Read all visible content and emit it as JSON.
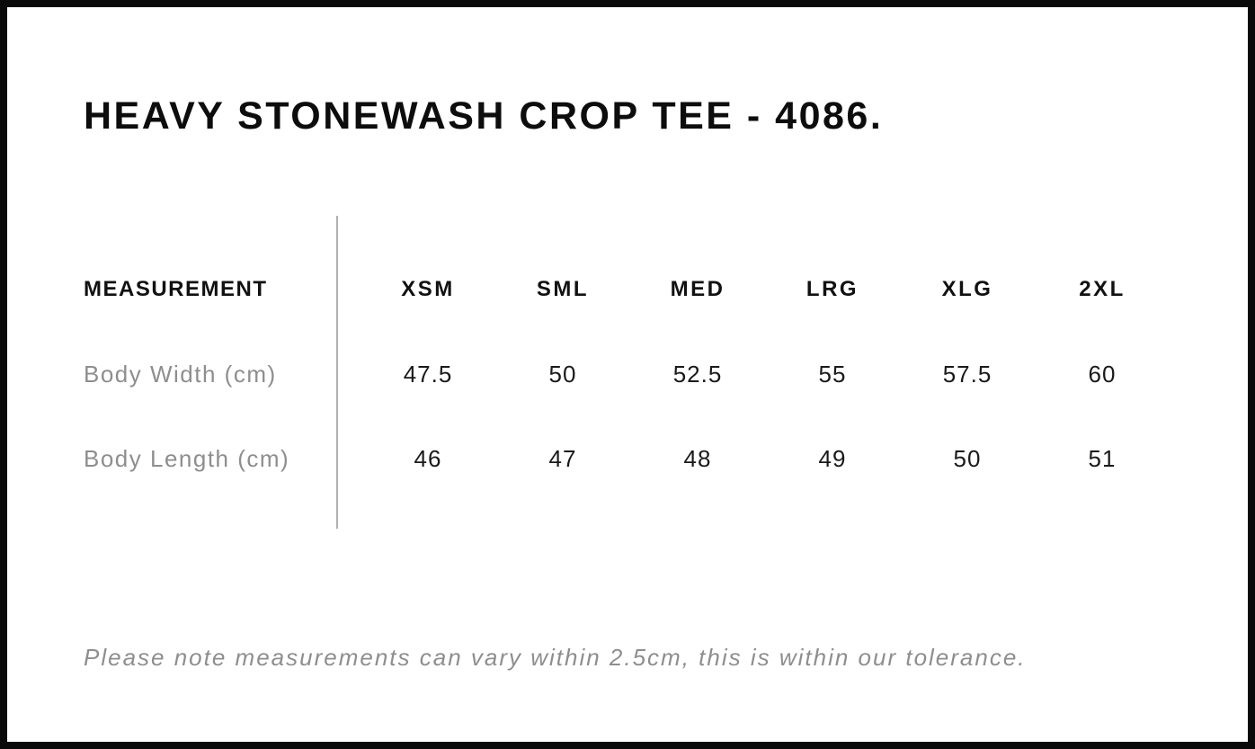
{
  "page": {
    "title": "HEAVY STONEWASH CROP TEE - 4086.",
    "note": "Please note measurements can vary within 2.5cm, this is within our tolerance."
  },
  "size_table": {
    "header_label": "MEASUREMENT",
    "columns": [
      "XSM",
      "SML",
      "MED",
      "LRG",
      "XLG",
      "2XL"
    ],
    "rows": [
      {
        "label": "Body Width (cm)",
        "values": [
          "47.5",
          "50",
          "52.5",
          "55",
          "57.5",
          "60"
        ]
      },
      {
        "label": "Body Length (cm)",
        "values": [
          "46",
          "47",
          "48",
          "49",
          "50",
          "51"
        ]
      }
    ]
  },
  "colors": {
    "frame_border": "#0a0a0a",
    "heading_text": "#0d0d0d",
    "value_text": "#1a1a1a",
    "muted_text": "#8e8e8e",
    "divider": "#b0b0b0",
    "background": "#ffffff"
  }
}
